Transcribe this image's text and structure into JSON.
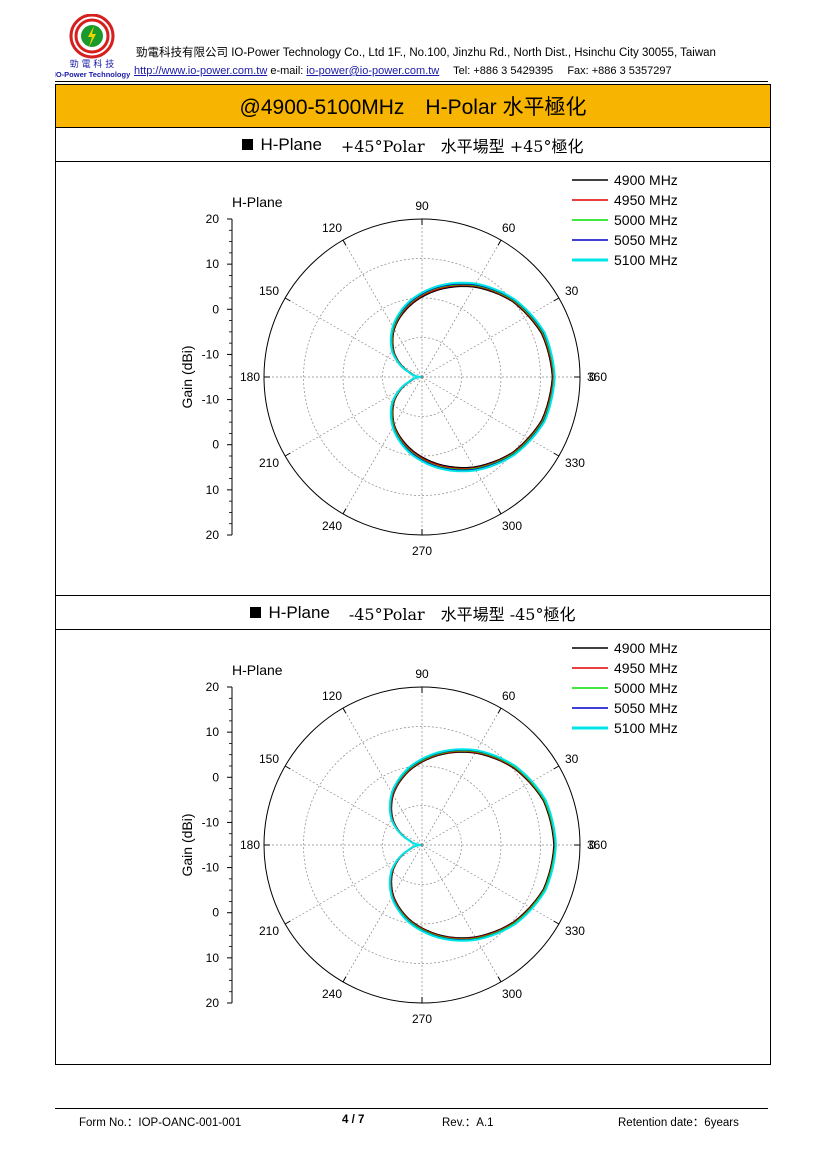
{
  "header": {
    "logo_text_cn": "勁 電 科 技",
    "logo_text_en": "IO-Power Technology",
    "company_line": "勁電科技有限公司 IO-Power Technology Co., Ltd 1F., No.100, Jinzhu Rd., North Dist., Hsinchu City 30055, Taiwan",
    "website": "http://www.io-power.com.tw",
    "email_label": "e-mail:",
    "email": "io-power@io-power.com.tw",
    "tel": "Tel: +886 3 5429395",
    "fax": "Fax: +886 3 5357297"
  },
  "title": "@4900-5100MHz　H-Polar 水平極化",
  "sections": [
    {
      "head_a": "H-Plane",
      "head_b": "+45°Polar　水平場型 +45°極化"
    },
    {
      "head_a": "H-Plane",
      "head_b": "-45°Polar　水平場型 -45°極化"
    }
  ],
  "footer": {
    "form": "Form No.：IOP-OANC-001-001",
    "page": "4 / 7",
    "rev": "Rev.：A.1",
    "retention": "Retention date：6years"
  },
  "colors": {
    "title_bg": "#f7b400",
    "series": [
      "#000000",
      "#e00000",
      "#00e000",
      "#0000cc",
      "#00e5e5"
    ]
  },
  "chart_data": [
    {
      "type": "polar-line",
      "title": "H-Plane",
      "ylabel": "Gain (dBi)",
      "r_tick_labels": [
        "20",
        "10",
        "0",
        "-10",
        "-10",
        "0",
        "10",
        "20"
      ],
      "r_range": [
        -20,
        20
      ],
      "angle_tick_labels": [
        "0",
        "30",
        "60",
        "90",
        "120",
        "150",
        "180",
        "210",
        "240",
        "270",
        "300",
        "330",
        "360"
      ],
      "grid": true,
      "legend_position": "top-right",
      "series": [
        {
          "name": "4900 MHz",
          "color": "#000000",
          "angles": [
            0,
            20,
            40,
            60,
            80,
            100,
            120,
            140,
            160,
            180,
            200,
            220,
            240,
            260,
            280,
            300,
            320,
            340
          ],
          "values": [
            13.0,
            12.2,
            9.8,
            6.3,
            2.3,
            -1.8,
            -6.0,
            -11.0,
            -17.0,
            -19.8,
            -17.0,
            -11.0,
            -6.0,
            -1.8,
            2.3,
            6.3,
            9.8,
            12.2
          ]
        },
        {
          "name": "4950 MHz",
          "color": "#e00000",
          "angles": [
            0,
            20,
            40,
            60,
            80,
            100,
            120,
            140,
            160,
            180,
            200,
            220,
            240,
            260,
            280,
            300,
            320,
            340
          ],
          "values": [
            13.2,
            12.4,
            10.0,
            6.6,
            2.6,
            -1.5,
            -5.8,
            -10.8,
            -16.8,
            -19.8,
            -16.8,
            -10.8,
            -5.8,
            -1.5,
            2.6,
            6.6,
            10.0,
            12.4
          ]
        },
        {
          "name": "5000 MHz",
          "color": "#00e000",
          "angles": [
            0,
            20,
            40,
            60,
            80,
            100,
            120,
            140,
            160,
            180,
            200,
            220,
            240,
            260,
            280,
            300,
            320,
            340
          ],
          "values": [
            13.4,
            12.6,
            10.2,
            6.8,
            2.9,
            -1.2,
            -5.6,
            -10.6,
            -16.7,
            -19.8,
            -16.7,
            -10.6,
            -5.6,
            -1.2,
            2.9,
            6.8,
            10.2,
            12.6
          ]
        },
        {
          "name": "5050 MHz",
          "color": "#0000cc",
          "angles": [
            0,
            20,
            40,
            60,
            80,
            100,
            120,
            140,
            160,
            180,
            200,
            220,
            240,
            260,
            280,
            300,
            320,
            340
          ],
          "values": [
            13.5,
            12.8,
            10.4,
            7.0,
            3.1,
            -1.0,
            -5.4,
            -10.4,
            -16.6,
            -19.8,
            -16.6,
            -10.4,
            -5.4,
            -1.0,
            3.1,
            7.0,
            10.4,
            12.8
          ]
        },
        {
          "name": "5100 MHz",
          "color": "#00e5e5",
          "angles": [
            0,
            20,
            40,
            60,
            80,
            100,
            120,
            140,
            160,
            180,
            200,
            220,
            240,
            260,
            280,
            300,
            320,
            340
          ],
          "values": [
            13.6,
            13.0,
            10.6,
            7.3,
            3.4,
            -0.7,
            -5.2,
            -10.2,
            -16.4,
            -19.8,
            -16.4,
            -10.2,
            -5.2,
            -0.7,
            3.4,
            7.3,
            10.6,
            13.0
          ]
        }
      ]
    },
    {
      "type": "polar-line",
      "title": "H-Plane",
      "ylabel": "Gain (dBi)",
      "r_tick_labels": [
        "20",
        "10",
        "0",
        "-10",
        "-10",
        "0",
        "10",
        "20"
      ],
      "r_range": [
        -20,
        20
      ],
      "angle_tick_labels": [
        "0",
        "30",
        "60",
        "90",
        "120",
        "150",
        "180",
        "210",
        "240",
        "270",
        "300",
        "330",
        "360"
      ],
      "grid": true,
      "legend_position": "top-right",
      "series": [
        {
          "name": "4900 MHz",
          "color": "#000000",
          "angles": [
            0,
            20,
            40,
            60,
            80,
            100,
            120,
            140,
            160,
            180,
            200,
            220,
            240,
            260,
            280,
            300,
            320,
            340
          ],
          "values": [
            13.4,
            12.7,
            10.3,
            6.9,
            3.0,
            -1.0,
            -5.4,
            -10.6,
            -16.8,
            -19.8,
            -16.8,
            -10.6,
            -5.4,
            -1.0,
            3.0,
            6.9,
            10.3,
            12.7
          ]
        },
        {
          "name": "4950 MHz",
          "color": "#e00000",
          "angles": [
            0,
            20,
            40,
            60,
            80,
            100,
            120,
            140,
            160,
            180,
            200,
            220,
            240,
            260,
            280,
            300,
            320,
            340
          ],
          "values": [
            13.6,
            12.9,
            10.5,
            7.1,
            3.2,
            -0.8,
            -5.2,
            -10.4,
            -16.7,
            -19.8,
            -16.7,
            -10.4,
            -5.2,
            -0.8,
            3.2,
            7.1,
            10.5,
            12.9
          ]
        },
        {
          "name": "5000 MHz",
          "color": "#00e000",
          "angles": [
            0,
            20,
            40,
            60,
            80,
            100,
            120,
            140,
            160,
            180,
            200,
            220,
            240,
            260,
            280,
            300,
            320,
            340
          ],
          "values": [
            13.7,
            13.0,
            10.7,
            7.3,
            3.4,
            -0.6,
            -5.0,
            -10.2,
            -16.6,
            -19.8,
            -16.6,
            -10.2,
            -5.0,
            -0.6,
            3.4,
            7.3,
            10.7,
            13.0
          ]
        },
        {
          "name": "5050 MHz",
          "color": "#0000cc",
          "angles": [
            0,
            20,
            40,
            60,
            80,
            100,
            120,
            140,
            160,
            180,
            200,
            220,
            240,
            260,
            280,
            300,
            320,
            340
          ],
          "values": [
            13.8,
            13.2,
            10.9,
            7.5,
            3.6,
            -0.4,
            -4.9,
            -10.1,
            -16.5,
            -19.8,
            -16.5,
            -10.1,
            -4.9,
            -0.4,
            3.6,
            7.5,
            10.9,
            13.2
          ]
        },
        {
          "name": "5100 MHz",
          "color": "#00e5e5",
          "angles": [
            0,
            20,
            40,
            60,
            80,
            100,
            120,
            140,
            160,
            180,
            200,
            220,
            240,
            260,
            280,
            300,
            320,
            340
          ],
          "values": [
            13.9,
            13.3,
            11.0,
            7.7,
            3.8,
            -0.2,
            -4.7,
            -9.9,
            -16.4,
            -19.8,
            -16.4,
            -9.9,
            -4.7,
            -0.2,
            3.8,
            7.7,
            11.0,
            13.3
          ]
        }
      ]
    }
  ]
}
